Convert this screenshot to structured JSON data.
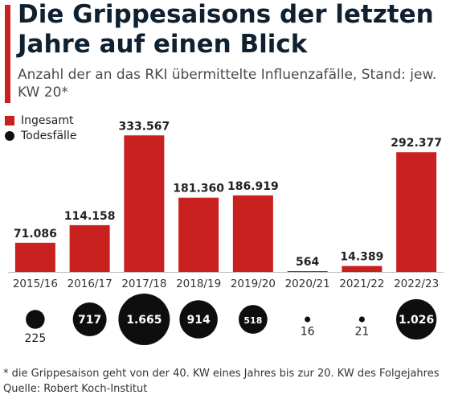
{
  "header": {
    "title": "Die Grippesaisons der letzten Jahre auf einen Blick",
    "subtitle": "Anzahl der an das RKI übermittelte Influenzafälle, Stand: jew. KW 20*"
  },
  "legend": {
    "items": [
      {
        "label": "Ingesamt",
        "color": "#c8211f",
        "shape": "square"
      },
      {
        "label": "Todesfälle",
        "color": "#0e0e0e",
        "shape": "circle"
      }
    ]
  },
  "chart_data": {
    "type": "bar",
    "categories": [
      "2015/16",
      "2016/17",
      "2017/18",
      "2018/19",
      "2019/20",
      "2020/21",
      "2021/22",
      "2022/23"
    ],
    "series": [
      {
        "name": "Ingesamt",
        "values": [
          71086,
          114158,
          333567,
          181360,
          186919,
          564,
          14389,
          292377
        ],
        "labels": [
          "71.086",
          "114.158",
          "333.567",
          "181.360",
          "186.919",
          "564",
          "14.389",
          "292.377"
        ],
        "color": "#c8211f"
      },
      {
        "name": "Todesfälle",
        "values": [
          225,
          717,
          1665,
          914,
          518,
          16,
          21,
          1026
        ],
        "labels": [
          "225",
          "717",
          "1.665",
          "914",
          "518",
          "16",
          "21",
          "1.026"
        ],
        "color": "#0e0e0e",
        "shape": "bubble"
      }
    ],
    "ylim": [
      0,
      340000
    ],
    "grid": false,
    "legend_position": "top-left"
  },
  "footer": {
    "note": "* die Grippesaison geht von der 40. KW eines Jahres bis zur 20. KW des Folgejahres",
    "source": "Quelle: Robert Koch-Institut"
  }
}
